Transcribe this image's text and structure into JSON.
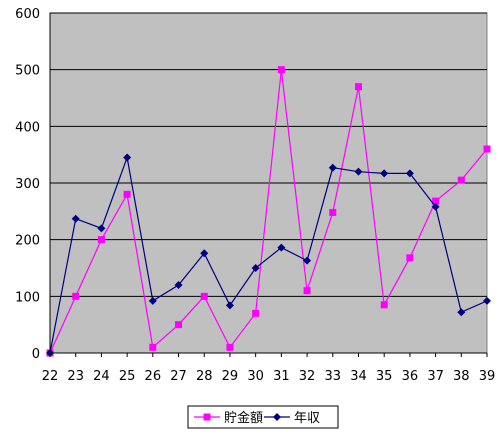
{
  "chart_data": {
    "type": "line",
    "x": [
      22,
      23,
      24,
      25,
      26,
      27,
      28,
      29,
      30,
      31,
      32,
      33,
      34,
      35,
      36,
      37,
      38,
      39
    ],
    "ylim": [
      0,
      600
    ],
    "yticks": [
      0,
      100,
      200,
      300,
      400,
      500,
      600
    ],
    "grid": true,
    "legend_position": "bottom",
    "plot_background": "#c0c0c0",
    "series": [
      {
        "name": "貯金額",
        "color": "#ff00ff",
        "marker": "square",
        "values": [
          0,
          100,
          200,
          280,
          10,
          50,
          100,
          10,
          70,
          500,
          110,
          248,
          470,
          85,
          168,
          268,
          305,
          360
        ]
      },
      {
        "name": "年収",
        "color": "#000080",
        "marker": "diamond",
        "values": [
          0,
          237,
          220,
          345,
          92,
          120,
          176,
          84,
          150,
          186,
          163,
          327,
          320,
          317,
          317,
          258,
          72,
          92
        ]
      }
    ]
  }
}
